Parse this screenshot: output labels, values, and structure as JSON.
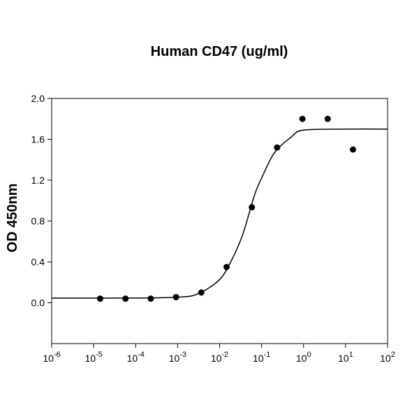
{
  "chart_data": {
    "type": "scatter",
    "title": "Human CD47 (ug/ml)",
    "y_label": "OD 450nm",
    "x_scale": "log",
    "xlim": [
      1e-06,
      100
    ],
    "xticks": [
      {
        "value": 1e-06,
        "label": "10-6"
      },
      {
        "value": 1e-05,
        "label": "10-5"
      },
      {
        "value": 0.0001,
        "label": "10-4"
      },
      {
        "value": 0.001,
        "label": "10-3"
      },
      {
        "value": 0.01,
        "label": "10-2"
      },
      {
        "value": 0.1,
        "label": "10-1"
      },
      {
        "value": 1,
        "label": "100"
      },
      {
        "value": 10,
        "label": "101"
      },
      {
        "value": 100,
        "label": "102"
      }
    ],
    "ylim": [
      -0.4,
      2.0
    ],
    "yticks": [
      {
        "value": 0,
        "label": "0.0"
      },
      {
        "value": 0.4,
        "label": "0.4"
      },
      {
        "value": 0.8,
        "label": "0.8"
      },
      {
        "value": 1.2,
        "label": "1.2"
      },
      {
        "value": 1.6,
        "label": "1.6"
      },
      {
        "value": 2,
        "label": "2.0"
      }
    ],
    "series": [
      {
        "type": "scatter",
        "color": "#000000",
        "x": [
          1.43e-05,
          5.72e-05,
          0.000229,
          0.000916,
          0.00366,
          0.01465,
          0.0586,
          0.234,
          0.9375,
          3.75,
          15
        ],
        "values": [
          0.04,
          0.04,
          0.04,
          0.055,
          0.1,
          0.35,
          0.935,
          1.52,
          1.8,
          1.8,
          1.5
        ]
      },
      {
        "type": "line",
        "color": "#000000",
        "x": [
          1e-06,
          0.0001,
          0.001,
          0.003,
          0.01,
          0.02,
          0.035,
          0.05,
          0.07,
          0.1,
          0.2,
          0.5,
          1,
          10,
          100
        ],
        "values": [
          0.045,
          0.0455,
          0.055,
          0.086,
          0.227,
          0.43,
          0.66,
          0.87,
          1.07,
          1.22,
          1.465,
          1.62,
          1.69,
          1.7,
          1.7
        ]
      }
    ]
  }
}
